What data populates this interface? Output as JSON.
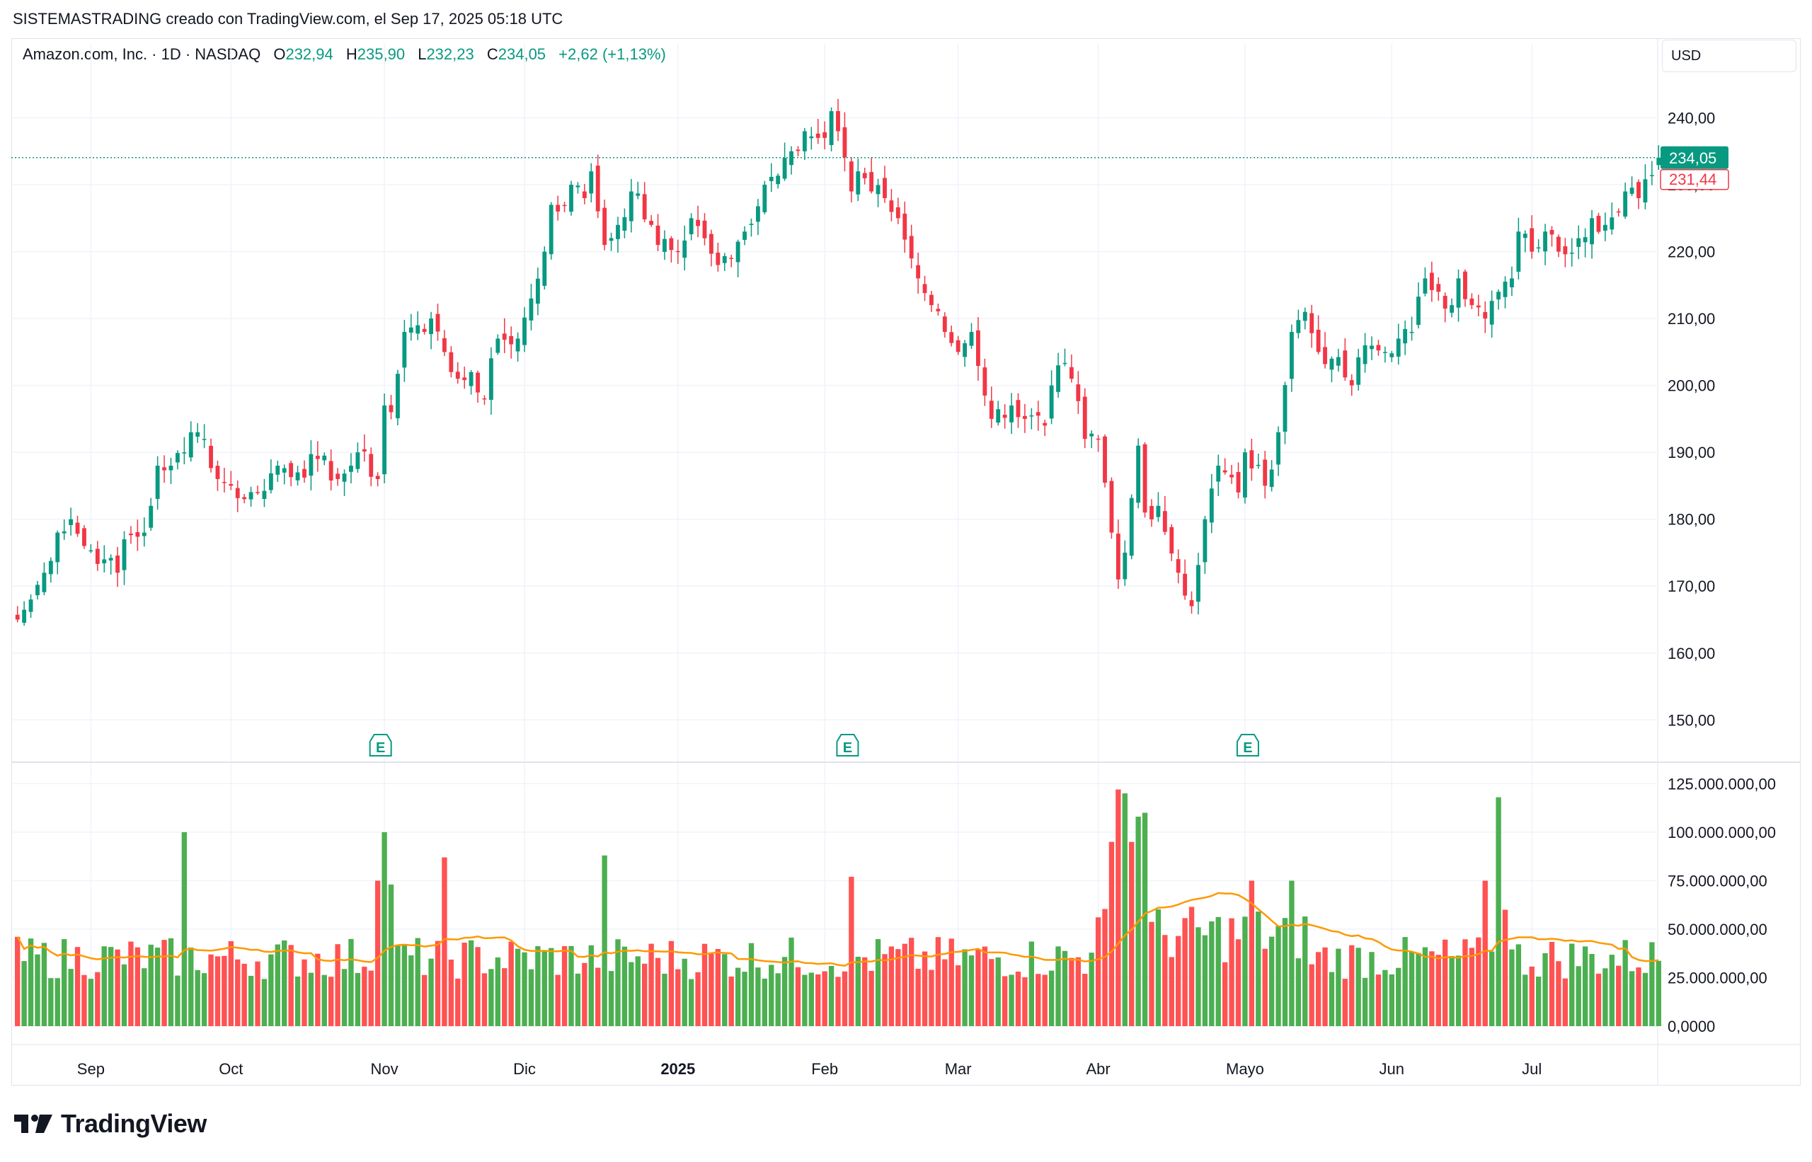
{
  "attribution": "SISTEMASTRADING creado con TradingView.com, el Sep 17, 2025 05:18 UTC",
  "legend": {
    "symbol": "Amazon.com, Inc. · 1D · NASDAQ",
    "o_label": "O",
    "o_value": "232,94",
    "h_label": "H",
    "h_value": "235,90",
    "l_label": "L",
    "l_value": "232,23",
    "c_label": "C",
    "c_value": "234,05",
    "change": "+2,62 (+1,13%)"
  },
  "currency": "USD",
  "price_axis": {
    "ticks": [
      "240,00",
      "230,00",
      "220,00",
      "210,00",
      "200,00",
      "190,00",
      "180,00",
      "170,00",
      "160,00",
      "150,00"
    ],
    "last_price_label": "234,05",
    "prev_close_label": "231,44"
  },
  "volume_axis": {
    "ticks": [
      "125.000.000,00",
      "100.000.000,00",
      "75.000.000,00",
      "50.000.000,00",
      "25.000.000,00",
      "0,0000"
    ]
  },
  "time_axis": {
    "labels": [
      "Sep",
      "Oct",
      "Nov",
      "Dic",
      "2025",
      "Feb",
      "Mar",
      "Abr",
      "Mayo",
      "Jun",
      "Jul"
    ]
  },
  "earnings_markers": [
    "E",
    "E",
    "E"
  ],
  "brand": "TradingView",
  "colors": {
    "up": "#089981",
    "down": "#f23645",
    "vol_up": "#4caf50",
    "vol_down": "#ff5252",
    "vol_ma": "#ff9800"
  },
  "chart_data": [
    {
      "type": "candlestick",
      "title": "Amazon.com, Inc. · 1D · NASDAQ",
      "currency": "USD",
      "ylim": [
        144,
        250
      ],
      "last_price": 234.05,
      "prev_close": 231.44,
      "x_range": [
        "2024-08-16",
        "2025-07-28"
      ],
      "grid": true,
      "anchors": [
        [
          "2024-08-16",
          165,
          "down"
        ],
        [
          "2024-08-20",
          168
        ],
        [
          "2024-08-22",
          172
        ],
        [
          "2024-08-26",
          178
        ],
        [
          "2024-08-28",
          180
        ],
        [
          "2024-08-30",
          176
        ],
        [
          "2024-09-04",
          174
        ],
        [
          "2024-09-06",
          172
        ],
        [
          "2024-09-09",
          177
        ],
        [
          "2024-09-12",
          178
        ],
        [
          "2024-09-13",
          182
        ],
        [
          "2024-09-16",
          188
        ],
        [
          "2024-09-18",
          188
        ],
        [
          "2024-09-20",
          190
        ],
        [
          "2024-09-23",
          193
        ],
        [
          "2024-09-25",
          192
        ],
        [
          "2024-09-27",
          186
        ],
        [
          "2024-10-01",
          185
        ],
        [
          "2024-10-03",
          183
        ],
        [
          "2024-10-07",
          184
        ],
        [
          "2024-10-10",
          188
        ],
        [
          "2024-10-15",
          187
        ],
        [
          "2024-10-18",
          189
        ],
        [
          "2024-10-23",
          186
        ],
        [
          "2024-10-25",
          188
        ],
        [
          "2024-10-28",
          190
        ],
        [
          "2024-10-31",
          186,
          "down"
        ],
        [
          "2024-11-01",
          197,
          "up"
        ],
        [
          "2024-11-04",
          196
        ],
        [
          "2024-11-06",
          208
        ],
        [
          "2024-11-08",
          209
        ],
        [
          "2024-11-11",
          208
        ],
        [
          "2024-11-12",
          210
        ],
        [
          "2024-11-14",
          205,
          "down"
        ],
        [
          "2024-11-15",
          202,
          "down"
        ],
        [
          "2024-11-18",
          201
        ],
        [
          "2024-11-20",
          202
        ],
        [
          "2024-11-22",
          198
        ],
        [
          "2024-11-26",
          207
        ],
        [
          "2024-11-29",
          207
        ],
        [
          "2024-12-03",
          213
        ],
        [
          "2024-12-05",
          220
        ],
        [
          "2024-12-06",
          227
        ],
        [
          "2024-12-09",
          226
        ],
        [
          "2024-12-11",
          230
        ],
        [
          "2024-12-13",
          228
        ],
        [
          "2024-12-16",
          232
        ],
        [
          "2024-12-18",
          221,
          "down"
        ],
        [
          "2024-12-20",
          224
        ],
        [
          "2024-12-24",
          229
        ],
        [
          "2024-12-27",
          224
        ],
        [
          "2024-12-30",
          221
        ],
        [
          "2025-01-02",
          220
        ],
        [
          "2025-01-06",
          225
        ],
        [
          "2025-01-08",
          222
        ],
        [
          "2025-01-10",
          218
        ],
        [
          "2025-01-14",
          219
        ],
        [
          "2025-01-16",
          223
        ],
        [
          "2025-01-21",
          230
        ],
        [
          "2025-01-24",
          234
        ],
        [
          "2025-01-27",
          235
        ],
        [
          "2025-01-29",
          238
        ],
        [
          "2025-01-31",
          237
        ],
        [
          "2025-02-03",
          237
        ],
        [
          "2025-02-04",
          241
        ],
        [
          "2025-02-05",
          238
        ],
        [
          "2025-02-07",
          229,
          "down"
        ],
        [
          "2025-02-10",
          232
        ],
        [
          "2025-02-12",
          229
        ],
        [
          "2025-02-14",
          228
        ],
        [
          "2025-02-18",
          225
        ],
        [
          "2025-02-21",
          216
        ],
        [
          "2025-02-25",
          212
        ],
        [
          "2025-02-27",
          208
        ],
        [
          "2025-03-03",
          205
        ],
        [
          "2025-03-05",
          208
        ],
        [
          "2025-03-10",
          195
        ],
        [
          "2025-03-13",
          197
        ],
        [
          "2025-03-17",
          195
        ],
        [
          "2025-03-20",
          194
        ],
        [
          "2025-03-24",
          203
        ],
        [
          "2025-03-26",
          201
        ],
        [
          "2025-03-28",
          192
        ],
        [
          "2025-04-01",
          192
        ],
        [
          "2025-04-03",
          178
        ],
        [
          "2025-04-04",
          171
        ],
        [
          "2025-04-07",
          175
        ],
        [
          "2025-04-09",
          191
        ],
        [
          "2025-04-10",
          181
        ],
        [
          "2025-04-14",
          182
        ],
        [
          "2025-04-17",
          172
        ],
        [
          "2025-04-21",
          167
        ],
        [
          "2025-04-23",
          180
        ],
        [
          "2025-04-25",
          188
        ],
        [
          "2025-04-28",
          187
        ],
        [
          "2025-04-30",
          184
        ],
        [
          "2025-05-01",
          190
        ],
        [
          "2025-05-06",
          185
        ],
        [
          "2025-05-08",
          193
        ],
        [
          "2025-05-12",
          208
        ],
        [
          "2025-05-14",
          211
        ],
        [
          "2025-05-16",
          205
        ],
        [
          "2025-05-20",
          204
        ],
        [
          "2025-05-23",
          200
        ],
        [
          "2025-05-27",
          206
        ],
        [
          "2025-05-30",
          205
        ],
        [
          "2025-06-03",
          207
        ],
        [
          "2025-06-05",
          208
        ],
        [
          "2025-06-09",
          216
        ],
        [
          "2025-06-11",
          214
        ],
        [
          "2025-06-13",
          212
        ],
        [
          "2025-06-16",
          216
        ],
        [
          "2025-06-18",
          212
        ],
        [
          "2025-06-20",
          210
        ],
        [
          "2025-06-24",
          214
        ],
        [
          "2025-06-26",
          216
        ],
        [
          "2025-06-27",
          223
        ],
        [
          "2025-07-01",
          220
        ],
        [
          "2025-07-03",
          223
        ],
        [
          "2025-07-07",
          220
        ],
        [
          "2025-07-10",
          222
        ],
        [
          "2025-07-14",
          225
        ],
        [
          "2025-07-16",
          224
        ],
        [
          "2025-07-18",
          226
        ],
        [
          "2025-07-21",
          229
        ],
        [
          "2025-07-23",
          228
        ],
        [
          "2025-07-25",
          231.44,
          "up"
        ],
        [
          "2025-07-28",
          234.05,
          "up"
        ]
      ],
      "earnings_dates": [
        "2024-10-31",
        "2025-02-06",
        "2025-05-01"
      ]
    },
    {
      "type": "bar",
      "title": "",
      "ylim": [
        0,
        135000000
      ],
      "moving_average": true,
      "notable_bars": [
        [
          "2024-09-20",
          100000000,
          "up"
        ],
        [
          "2024-10-31",
          75000000,
          "down"
        ],
        [
          "2024-11-01",
          100000000,
          "up"
        ],
        [
          "2024-11-04",
          73000000,
          "up"
        ],
        [
          "2024-11-14",
          87000000,
          "down"
        ],
        [
          "2024-12-18",
          88000000,
          "up"
        ],
        [
          "2025-02-07",
          77000000,
          "down"
        ],
        [
          "2025-04-03",
          95000000,
          "down"
        ],
        [
          "2025-04-04",
          122000000,
          "down"
        ],
        [
          "2025-04-07",
          120000000,
          "up"
        ],
        [
          "2025-04-08",
          95000000,
          "down"
        ],
        [
          "2025-04-09",
          108000000,
          "up"
        ],
        [
          "2025-04-10",
          110000000,
          "up"
        ],
        [
          "2025-05-02",
          75000000,
          "down"
        ],
        [
          "2025-05-12",
          75000000,
          "up"
        ],
        [
          "2025-06-20",
          75000000,
          "down"
        ],
        [
          "2025-06-24",
          118000000,
          "up"
        ],
        [
          "2025-06-25",
          60000000,
          "down"
        ]
      ],
      "base_volume": 37000000
    }
  ]
}
